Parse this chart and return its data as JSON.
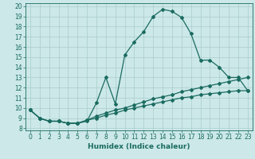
{
  "xlabel": "Humidex (Indice chaleur)",
  "background_color": "#cce8e8",
  "grid_color": "#aacccc",
  "line_color": "#1a6b60",
  "xlim": [
    -0.5,
    23.5
  ],
  "ylim": [
    7.8,
    20.3
  ],
  "xticks": [
    0,
    1,
    2,
    3,
    4,
    5,
    6,
    7,
    8,
    9,
    10,
    11,
    12,
    13,
    14,
    15,
    16,
    17,
    18,
    19,
    20,
    21,
    22,
    23
  ],
  "yticks": [
    8,
    9,
    10,
    11,
    12,
    13,
    14,
    15,
    16,
    17,
    18,
    19,
    20
  ],
  "line1_x": [
    0,
    1,
    2,
    3,
    4,
    5,
    6,
    7,
    8,
    9,
    10,
    11,
    12,
    13,
    14,
    15,
    16,
    17,
    18,
    19,
    20,
    21,
    22,
    23
  ],
  "line1_y": [
    9.8,
    9.0,
    8.7,
    8.7,
    8.5,
    8.5,
    8.7,
    10.5,
    13.0,
    10.4,
    15.2,
    16.5,
    17.5,
    19.0,
    19.7,
    19.5,
    18.9,
    17.3,
    14.7,
    14.7,
    14.0,
    13.0,
    13.0,
    11.7
  ],
  "line2_x": [
    0,
    1,
    2,
    3,
    4,
    5,
    6,
    7,
    8,
    9,
    10,
    11,
    12,
    13,
    14,
    15,
    16,
    17,
    18,
    19,
    20,
    21,
    22,
    23
  ],
  "line2_y": [
    9.8,
    9.0,
    8.7,
    8.7,
    8.5,
    8.5,
    8.8,
    9.2,
    9.5,
    9.8,
    10.0,
    10.3,
    10.6,
    10.9,
    11.1,
    11.3,
    11.6,
    11.8,
    12.0,
    12.2,
    12.4,
    12.6,
    12.8,
    13.0
  ],
  "line3_x": [
    0,
    1,
    2,
    3,
    4,
    5,
    6,
    7,
    8,
    9,
    10,
    11,
    12,
    13,
    14,
    15,
    16,
    17,
    18,
    19,
    20,
    21,
    22,
    23
  ],
  "line3_y": [
    9.8,
    9.0,
    8.7,
    8.7,
    8.5,
    8.5,
    8.8,
    9.0,
    9.3,
    9.5,
    9.8,
    10.0,
    10.2,
    10.4,
    10.6,
    10.8,
    11.0,
    11.1,
    11.3,
    11.4,
    11.5,
    11.6,
    11.7,
    11.7
  ],
  "marker": "D",
  "markersize": 2.0,
  "linewidth": 0.9,
  "label_fontsize": 6.5,
  "tick_fontsize": 5.5
}
